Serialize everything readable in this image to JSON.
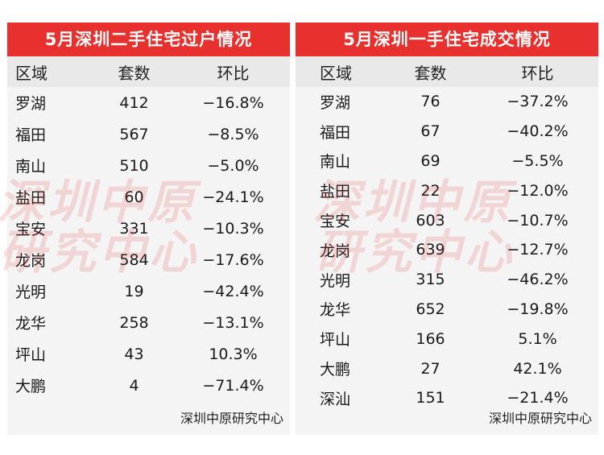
{
  "left": {
    "title": "5月深圳二手住宅过户情况",
    "headers": [
      "区域",
      "套数",
      "环比"
    ],
    "rows": [
      [
        "罗湖",
        "412",
        "−16.8%"
      ],
      [
        "福田",
        "567",
        "−8.5%"
      ],
      [
        "南山",
        "510",
        "−5.0%"
      ],
      [
        "盐田",
        "60",
        "−24.1%"
      ],
      [
        "宝安",
        "331",
        "−10.3%"
      ],
      [
        "龙岗",
        "584",
        "−17.6%"
      ],
      [
        "光明",
        "19",
        "−42.4%"
      ],
      [
        "龙华",
        "258",
        "−13.1%"
      ],
      [
        "坪山",
        "43",
        "10.3%"
      ],
      [
        "大鹏",
        "4",
        "−71.4%"
      ]
    ],
    "source": "深圳中原研究中心",
    "watermark_line1": "深圳中原",
    "watermark_line2": "研究中心"
  },
  "right": {
    "title": "5月深圳一手住宅成交情况",
    "headers": [
      "区域",
      "套数",
      "环比"
    ],
    "rows": [
      [
        "罗湖",
        "76",
        "−37.2%"
      ],
      [
        "福田",
        "67",
        "−40.2%"
      ],
      [
        "南山",
        "69",
        "−5.5%"
      ],
      [
        "盐田",
        "22",
        "−12.0%"
      ],
      [
        "宝安",
        "603",
        "−10.7%"
      ],
      [
        "龙岗",
        "639",
        "−12.7%"
      ],
      [
        "光明",
        "315",
        "−46.2%"
      ],
      [
        "龙华",
        "652",
        "−19.8%"
      ],
      [
        "坪山",
        "166",
        "5.1%"
      ],
      [
        "大鹏",
        "27",
        "42.1%"
      ],
      [
        "深汕",
        "151",
        "−21.4%"
      ]
    ],
    "source": "深圳中原研究中心",
    "watermark_line1": "深圳中原",
    "watermark_line2": "研究中心"
  },
  "colors": {
    "title_bg": "#e8312e",
    "header_bg": "#e9e9e9",
    "body_bg": "#f4f4f4"
  }
}
